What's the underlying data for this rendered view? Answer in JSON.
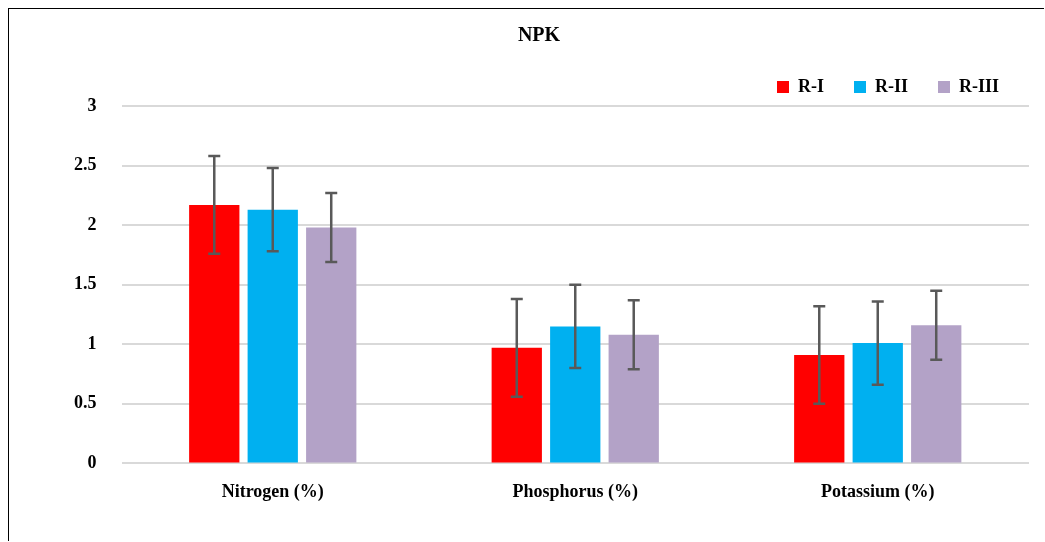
{
  "chart_data": {
    "type": "bar",
    "title": "NPK",
    "categories": [
      "Nitrogen (%)",
      "Phosphorus (%)",
      "Potassium (%)"
    ],
    "series": [
      {
        "name": "R-I",
        "color": "#ff0000",
        "values": [
          2.17,
          0.97,
          0.91
        ],
        "errors": [
          0.41,
          0.41,
          0.41
        ]
      },
      {
        "name": "R-II",
        "color": "#00b0f0",
        "values": [
          2.13,
          1.15,
          1.01
        ],
        "errors": [
          0.35,
          0.35,
          0.35
        ]
      },
      {
        "name": "R-III",
        "color": "#b3a2c7",
        "values": [
          1.98,
          1.08,
          1.16
        ],
        "errors": [
          0.29,
          0.29,
          0.29
        ]
      }
    ],
    "ylim": [
      0,
      3
    ],
    "yticks": [
      0,
      0.5,
      1,
      1.5,
      2,
      2.5,
      3
    ],
    "grid": "y",
    "legend": "top right"
  }
}
